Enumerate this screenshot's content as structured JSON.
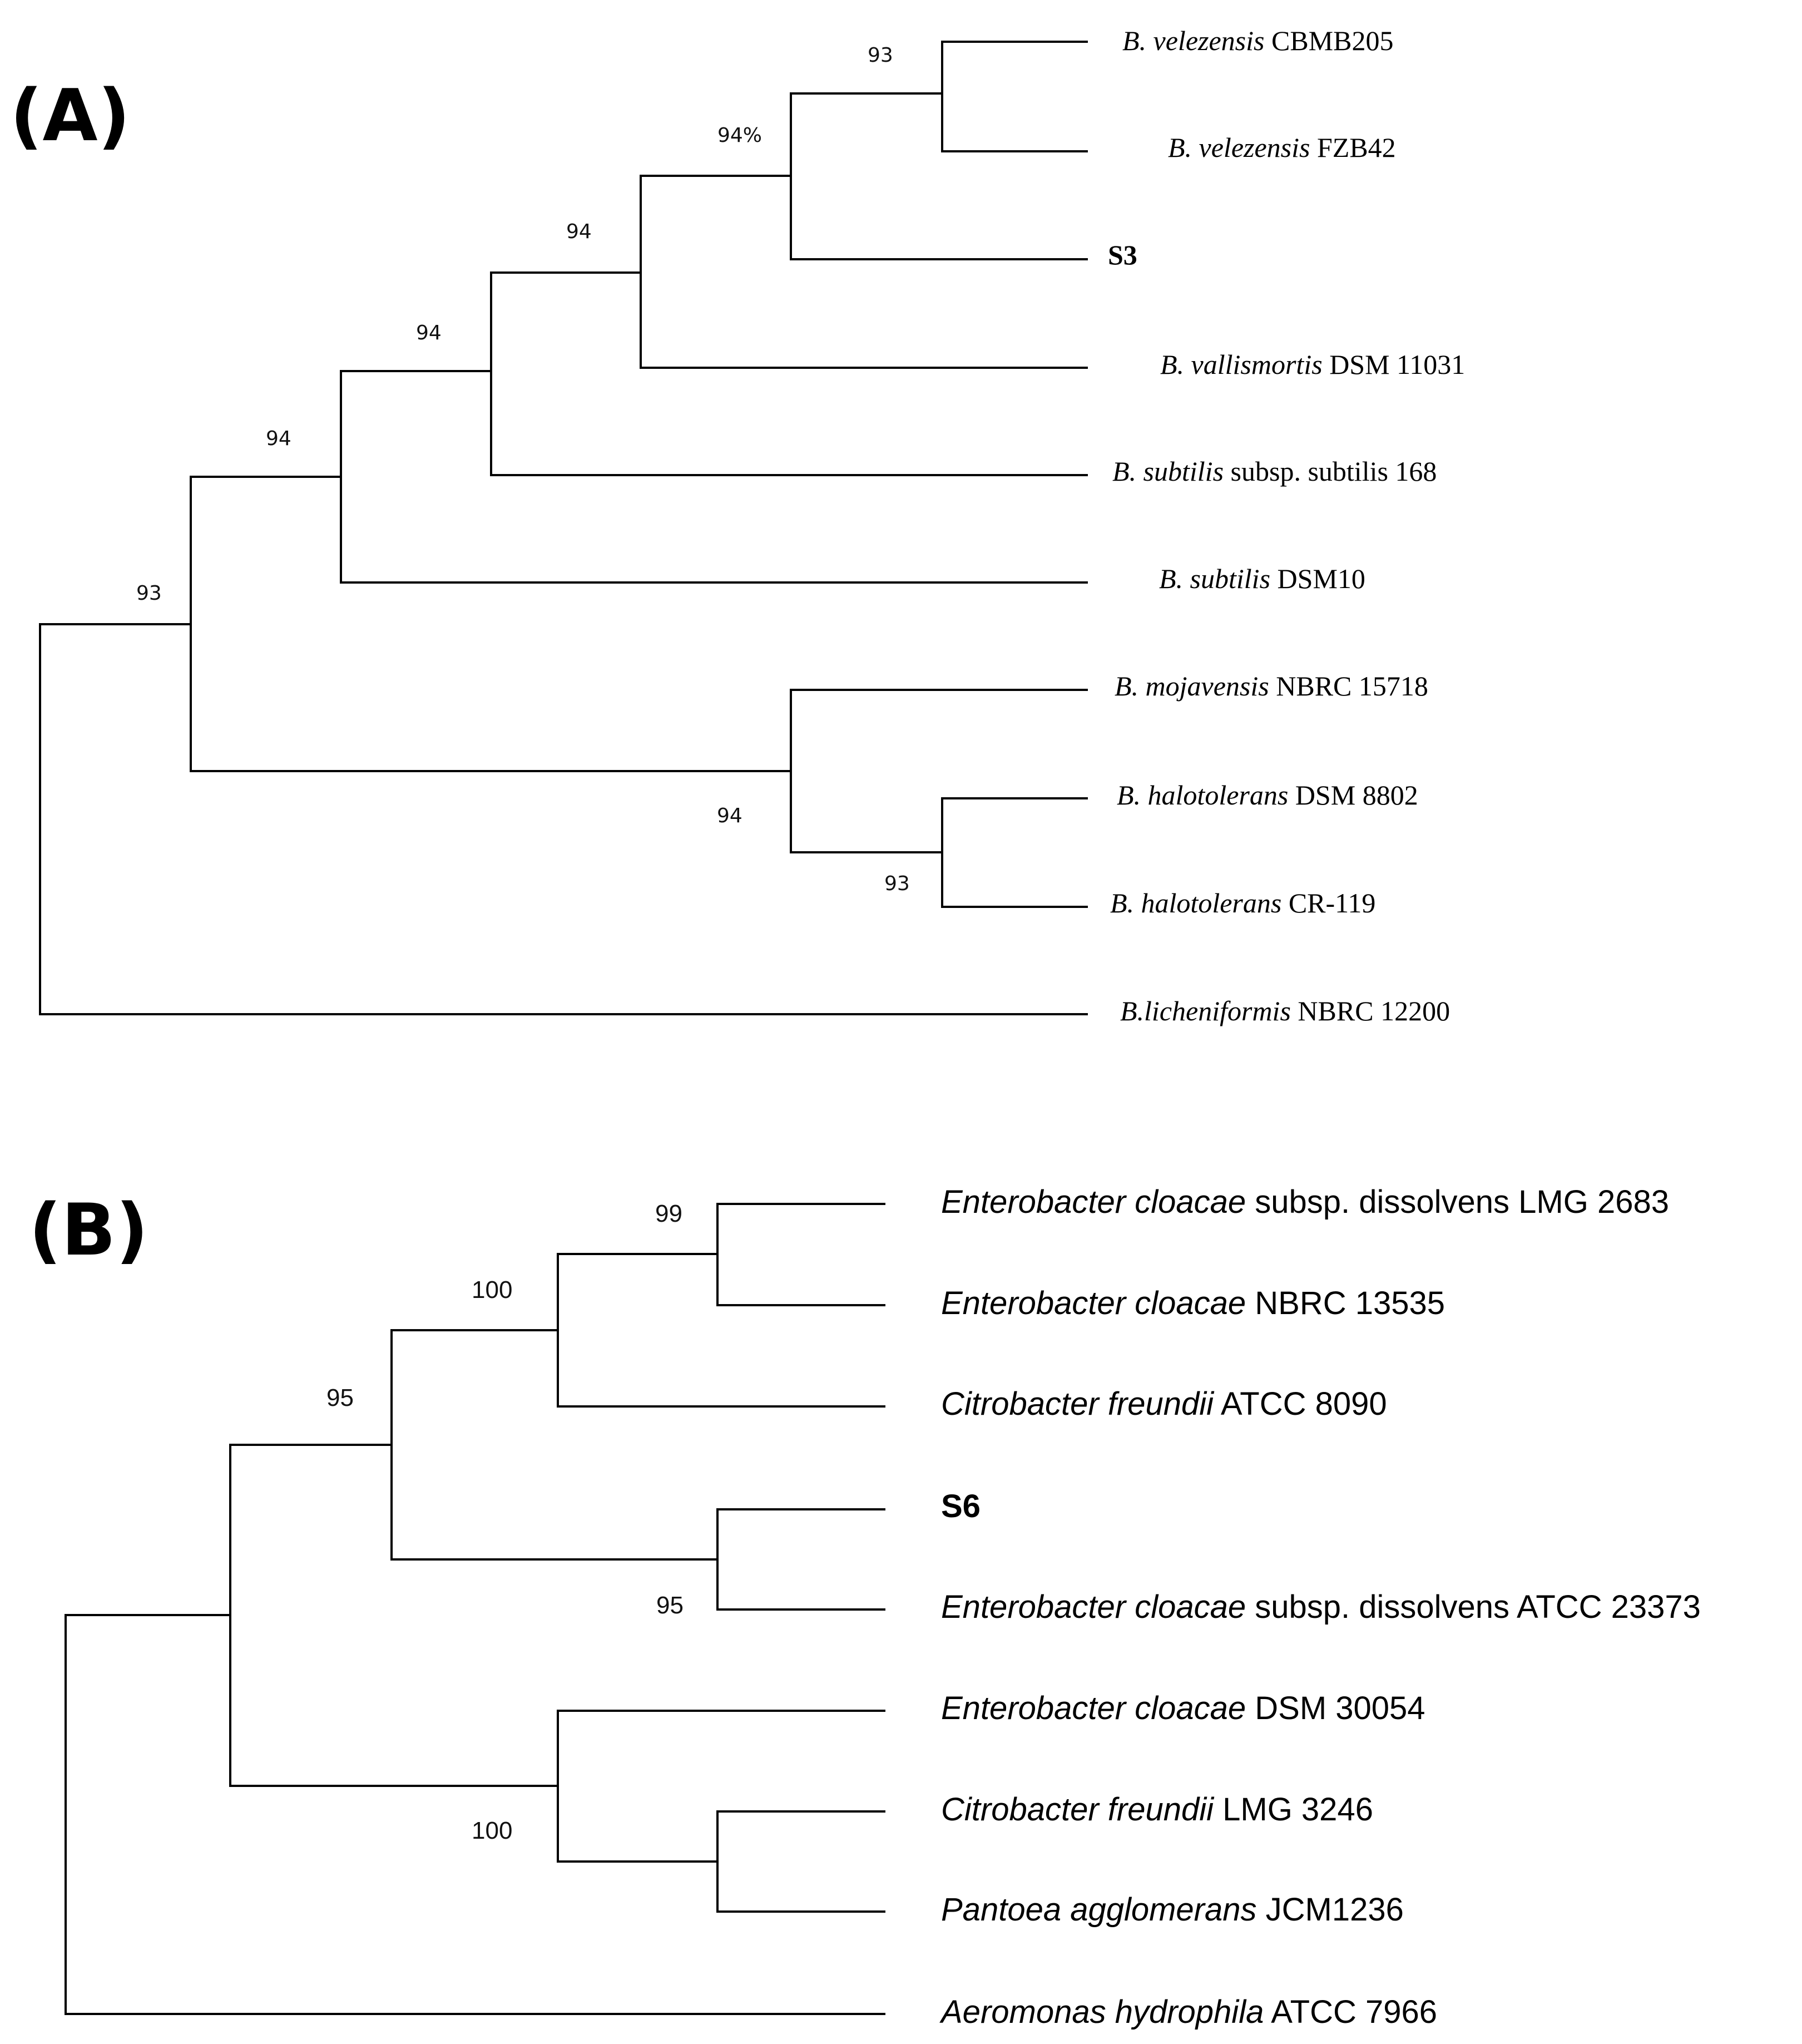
{
  "panel_a": {
    "label": "(A)",
    "taxa": {
      "velezensis_cbmb205": {
        "species": "B. velezensis",
        "strain": "CBMB205"
      },
      "velezensis_fzb42": {
        "species": "B. velezensis",
        "strain": "FZB42"
      },
      "s3": {
        "name": "S3"
      },
      "vallismortis": {
        "species": "B. vallismortis",
        "strain": "DSM 11031"
      },
      "subtilis_168": {
        "species": "B. subtilis",
        "strain": "subsp. subtilis 168"
      },
      "subtilis_dsm10": {
        "species": "B. subtilis",
        "strain": "DSM10"
      },
      "mojavensis": {
        "species": "B. mojavensis",
        "strain": "NBRC 15718"
      },
      "halotolerans_dsm8802": {
        "species": "B. halotolerans",
        "strain": "DSM 8802"
      },
      "halotolerans_cr119": {
        "species": "B. halotolerans",
        "strain": "CR-119"
      },
      "licheniformis": {
        "species": "B.licheniformis",
        "strain": "NBRC 12200"
      }
    },
    "bootstrap": {
      "velezensis_clade": "93",
      "s3_clade": "94%",
      "vallismortis_clade": "94",
      "subtilis168_clade": "94",
      "subtilis_clade": "94",
      "ingroup": "93",
      "mojavensis_clade": "94",
      "halotolerans_clade": "93"
    }
  },
  "panel_b": {
    "label": "(B)",
    "taxa": {
      "cloacae_lmg2683": {
        "species": "Enterobacter cloacae",
        "strain": "subsp. dissolvens LMG 2683"
      },
      "cloacae_nbrc13535": {
        "species": "Enterobacter cloacae",
        "strain": "NBRC 13535"
      },
      "freundii_atcc8090": {
        "species": "Citrobacter freundii",
        "strain": "ATCC 8090"
      },
      "s6": {
        "name": "S6"
      },
      "cloacae_atcc23373": {
        "species": "Enterobacter cloacae",
        "strain": "subsp. dissolvens ATCC 23373"
      },
      "cloacae_dsm30054": {
        "species": "Enterobacter cloacae",
        "strain": "DSM 30054"
      },
      "freundii_lmg3246": {
        "species": "Citrobacter freundii",
        "strain": "LMG 3246"
      },
      "agglomerans": {
        "species": "Pantoea agglomerans",
        "strain": "JCM1236"
      },
      "hydrophila": {
        "species": "Aeromonas hydrophila",
        "strain": "ATCC 7966"
      }
    },
    "bootstrap": {
      "cloacae_pair": "99",
      "cloacae_freundii": "100",
      "upper_clade": "95",
      "s6_clade": "95",
      "lower_clade": "100"
    }
  }
}
